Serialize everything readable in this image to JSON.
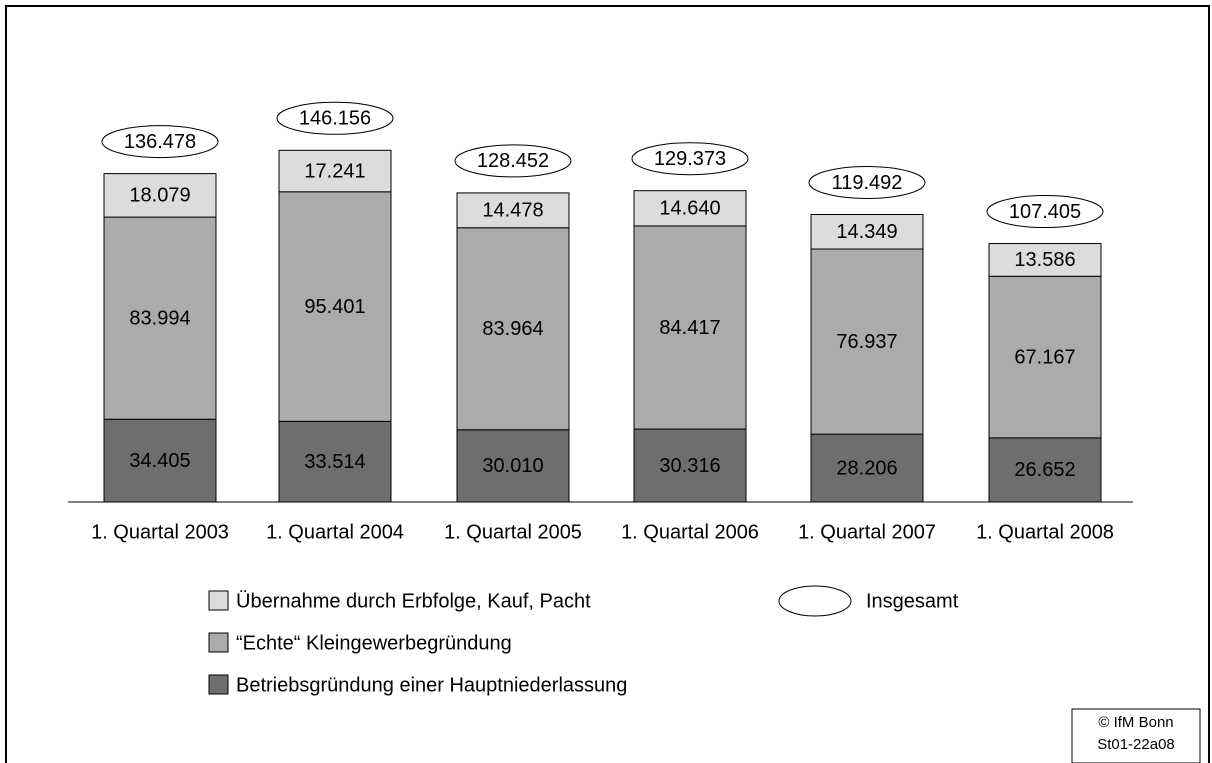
{
  "chart_data": {
    "type": "bar",
    "stacked": true,
    "categories": [
      "1. Quartal 2003",
      "1. Quartal 2004",
      "1. Quartal 2005",
      "1. Quartal 2006",
      "1. Quartal 2007",
      "1. Quartal 2008"
    ],
    "series": [
      {
        "name": "Übernahme durch Erbfolge, Kauf, Pacht",
        "color": "#dcdcdc",
        "values": [
          18079,
          17241,
          14478,
          14640,
          14349,
          13586
        ],
        "value_labels": [
          "18.079",
          "17.241",
          "14.478",
          "14.640",
          "14.349",
          "13.586"
        ]
      },
      {
        "name": "“Echte“ Kleingewerbegründung",
        "color": "#ababab",
        "values": [
          83994,
          95401,
          83964,
          84417,
          76937,
          67167
        ],
        "value_labels": [
          "83.994",
          "95.401",
          "83.964",
          "84.417",
          "76.937",
          "67.167"
        ]
      },
      {
        "name": "Betriebsgründung einer Hauptniederlassung",
        "color": "#6e6e6e",
        "values": [
          34405,
          33514,
          30010,
          30316,
          28206,
          26652
        ],
        "value_labels": [
          "34.405",
          "33.514",
          "30.010",
          "30.316",
          "28.206",
          "26.652"
        ]
      }
    ],
    "totals": {
      "name": "Insgesamt",
      "values": [
        136478,
        146156,
        128452,
        129373,
        119492,
        107405
      ],
      "value_labels": [
        "136.478",
        "146.156",
        "128.452",
        "129.373",
        "119.492",
        "107.405"
      ]
    },
    "ylim": [
      0,
      160000
    ],
    "notes": [
      "© IfM Bonn",
      "St01-22a08"
    ]
  }
}
